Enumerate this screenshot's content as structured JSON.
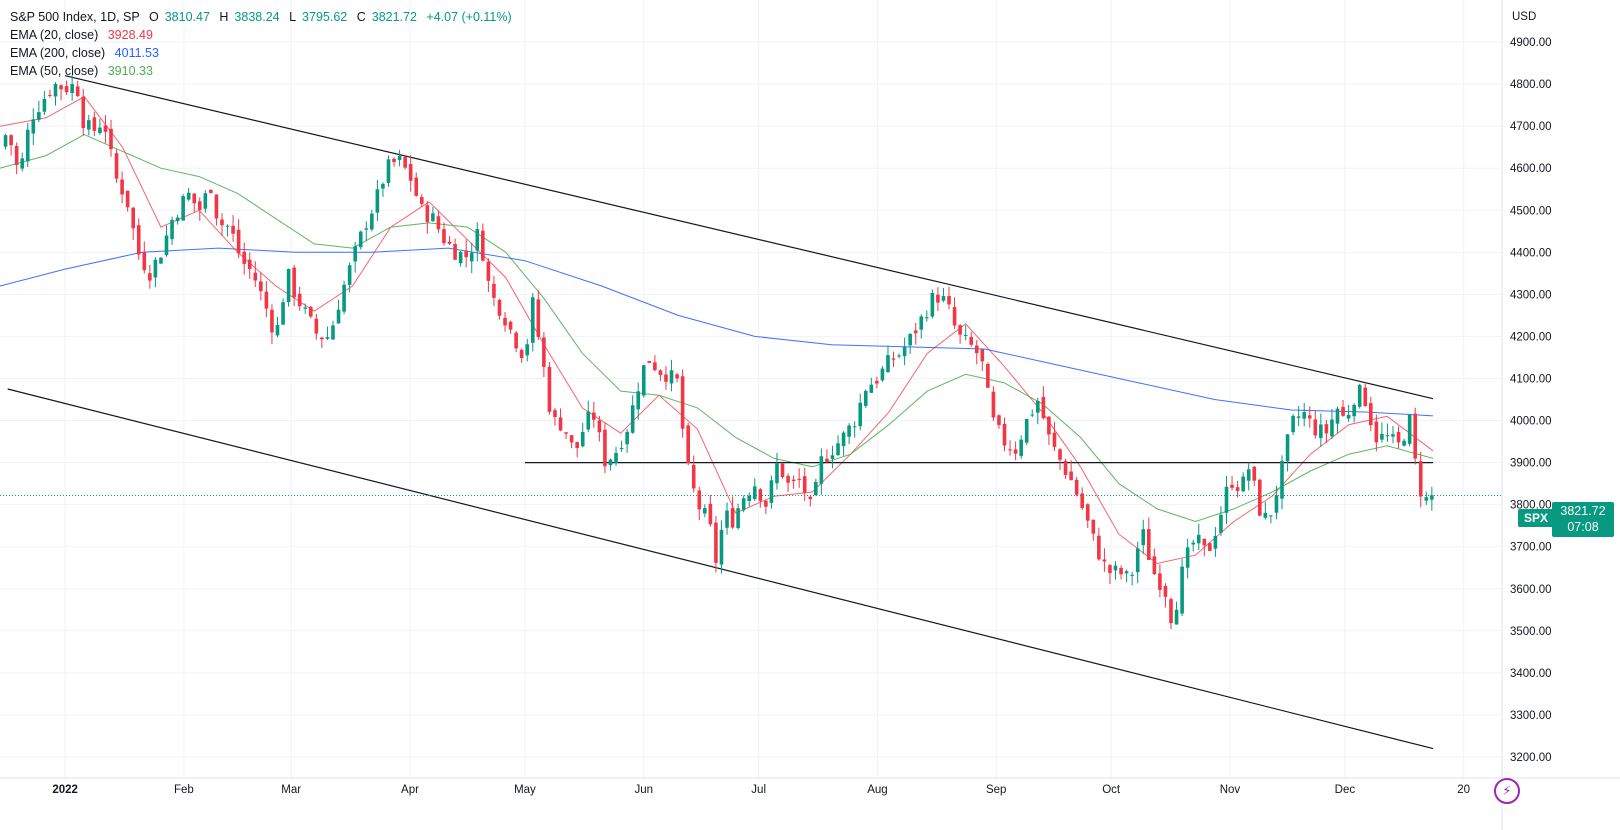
{
  "legend": {
    "symbol": "S&P 500 Index, 1D, SP",
    "ohlc": {
      "o_label": "O",
      "o": "3810.47",
      "h_label": "H",
      "h": "3838.24",
      "l_label": "L",
      "l": "3795.62",
      "c_label": "C",
      "c": "3821.72",
      "change": "+4.07 (+0.11%)"
    },
    "ema20": {
      "label": "EMA (20, close)",
      "value": "3928.49"
    },
    "ema200": {
      "label": "EMA (200, close)",
      "value": "4011.53"
    },
    "ema50": {
      "label": "EMA (50, close)",
      "value": "3910.33"
    }
  },
  "price_badge": {
    "symbol": "SPX",
    "price": "3821.72",
    "countdown": "07:08"
  },
  "colors": {
    "up": "#089981",
    "down": "#f23645",
    "ema20": "#f7525f",
    "ema50": "#4caf50",
    "ema200": "#2962ff"
  },
  "chart_data": {
    "type": "candlestick",
    "title": "S&P 500 Index, 1D, SP",
    "currency": "USD",
    "ylim": [
      3150,
      5000
    ],
    "y_ticks": [
      "4900.00",
      "4800.00",
      "4700.00",
      "4600.00",
      "4500.00",
      "4400.00",
      "4300.00",
      "4200.00",
      "4100.00",
      "4000.00",
      "3900.00",
      "3800.00",
      "3700.00",
      "3600.00",
      "3500.00",
      "3400.00",
      "3300.00",
      "3200.00"
    ],
    "x_ticks": [
      {
        "label": "2022",
        "day": 0,
        "bold": true
      },
      {
        "label": "Feb",
        "day": 31
      },
      {
        "label": "Mar",
        "day": 59
      },
      {
        "label": "Apr",
        "day": 90
      },
      {
        "label": "May",
        "day": 120
      },
      {
        "label": "Jun",
        "day": 151
      },
      {
        "label": "Jul",
        "day": 181
      },
      {
        "label": "Aug",
        "day": 212
      },
      {
        "label": "Sep",
        "day": 243
      },
      {
        "label": "Oct",
        "day": 273
      },
      {
        "label": "Nov",
        "day": 304
      },
      {
        "label": "Dec",
        "day": 334
      },
      {
        "label": "20",
        "day": 365
      }
    ],
    "x_range_days": [
      -17,
      375
    ],
    "price_path": [
      [
        "-17",
        4650
      ],
      [
        "-15",
        4690
      ],
      [
        "-12",
        4580
      ],
      [
        "-9",
        4720
      ],
      [
        "-6",
        4760
      ],
      [
        "-3",
        4800
      ],
      [
        "0",
        4790
      ],
      [
        "3",
        4800
      ],
      [
        "5",
        4700
      ],
      [
        "8",
        4690
      ],
      [
        "10",
        4720
      ],
      [
        "13",
        4580
      ],
      [
        "16",
        4530
      ],
      [
        "19",
        4400
      ],
      [
        "22",
        4350
      ],
      [
        "25",
        4400
      ],
      [
        "28",
        4480
      ],
      [
        "32",
        4540
      ],
      [
        "35",
        4500
      ],
      [
        "38",
        4560
      ],
      [
        "40",
        4470
      ],
      [
        "43",
        4460
      ],
      [
        "46",
        4380
      ],
      [
        "49",
        4350
      ],
      [
        "52",
        4280
      ],
      [
        "55",
        4200
      ],
      [
        "58",
        4350
      ],
      [
        "60",
        4300
      ],
      [
        "63",
        4250
      ],
      [
        "66",
        4200
      ],
      [
        "69",
        4200
      ],
      [
        "72",
        4300
      ],
      [
        "75",
        4380
      ],
      [
        "78",
        4460
      ],
      [
        "81",
        4520
      ],
      [
        "84",
        4600
      ],
      [
        "87",
        4620
      ],
      [
        "90",
        4580
      ],
      [
        "93",
        4500
      ],
      [
        "96",
        4480
      ],
      [
        "99",
        4430
      ],
      [
        "102",
        4400
      ],
      [
        "105",
        4390
      ],
      [
        "108",
        4450
      ],
      [
        "111",
        4300
      ],
      [
        "114",
        4260
      ],
      [
        "117",
        4200
      ],
      [
        "120",
        4150
      ],
      [
        "122",
        4280
      ],
      [
        "125",
        4120
      ],
      [
        "127",
        4000
      ],
      [
        "130",
        3990
      ],
      [
        "133",
        3920
      ],
      [
        "136",
        4000
      ],
      [
        "138",
        4010
      ],
      [
        "141",
        3900
      ],
      [
        "144",
        3930
      ],
      [
        "147",
        3990
      ],
      [
        "150",
        4100
      ],
      [
        "152",
        4150
      ],
      [
        "155",
        4120
      ],
      [
        "157",
        4110
      ],
      [
        "160",
        4090
      ],
      [
        "162",
        3900
      ],
      [
        "165",
        3800
      ],
      [
        "168",
        3760
      ],
      [
        "170",
        3660
      ],
      [
        "172",
        3780
      ],
      [
        "174",
        3760
      ],
      [
        "177",
        3820
      ],
      [
        "180",
        3850
      ],
      [
        "183",
        3800
      ],
      [
        "186",
        3900
      ],
      [
        "189",
        3840
      ],
      [
        "192",
        3860
      ],
      [
        "195",
        3780
      ],
      [
        "197",
        3900
      ],
      [
        "200",
        3930
      ],
      [
        "203",
        3960
      ],
      [
        "206",
        4000
      ],
      [
        "209",
        4080
      ],
      [
        "212",
        4100
      ],
      [
        "215",
        4140
      ],
      [
        "218",
        4160
      ],
      [
        "221",
        4200
      ],
      [
        "224",
        4250
      ],
      [
        "227",
        4300
      ],
      [
        "230",
        4280
      ],
      [
        "233",
        4200
      ],
      [
        "236",
        4180
      ],
      [
        "239",
        4150
      ],
      [
        "242",
        4000
      ],
      [
        "245",
        3950
      ],
      [
        "248",
        3930
      ],
      [
        "251",
        4000
      ],
      [
        "254",
        4050
      ],
      [
        "257",
        3950
      ],
      [
        "260",
        3900
      ],
      [
        "263",
        3850
      ],
      [
        "266",
        3780
      ],
      [
        "269",
        3700
      ],
      [
        "272",
        3640
      ],
      [
        "275",
        3640
      ],
      [
        "278",
        3620
      ],
      [
        "281",
        3740
      ],
      [
        "284",
        3640
      ],
      [
        "287",
        3600
      ],
      [
        "289",
        3520
      ],
      [
        "292",
        3660
      ],
      [
        "295",
        3720
      ],
      [
        "298",
        3680
      ],
      [
        "301",
        3760
      ],
      [
        "304",
        3860
      ],
      [
        "307",
        3840
      ],
      [
        "309",
        3890
      ],
      [
        "312",
        3780
      ],
      [
        "314",
        3760
      ],
      [
        "317",
        3860
      ],
      [
        "320",
        3990
      ],
      [
        "323",
        4020
      ],
      [
        "326",
        3980
      ],
      [
        "329",
        3970
      ],
      [
        "332",
        4030
      ],
      [
        "334",
        4000
      ],
      [
        "337",
        4070
      ],
      [
        "339",
        4060
      ],
      [
        "342",
        3960
      ],
      [
        "345",
        3960
      ],
      [
        "348",
        3940
      ],
      [
        "351",
        4000
      ],
      [
        "353",
        3850
      ],
      [
        "355",
        3810
      ],
      [
        "357",
        3821
      ]
    ],
    "series": [
      {
        "name": "EMA (20, close)",
        "last": 3928.49,
        "values": [
          [
            -17,
            4700
          ],
          [
            -5,
            4720
          ],
          [
            5,
            4770
          ],
          [
            15,
            4650
          ],
          [
            25,
            4460
          ],
          [
            35,
            4500
          ],
          [
            45,
            4400
          ],
          [
            55,
            4320
          ],
          [
            65,
            4260
          ],
          [
            75,
            4320
          ],
          [
            85,
            4460
          ],
          [
            95,
            4520
          ],
          [
            105,
            4430
          ],
          [
            115,
            4340
          ],
          [
            125,
            4180
          ],
          [
            135,
            4030
          ],
          [
            145,
            3970
          ],
          [
            155,
            4060
          ],
          [
            165,
            3980
          ],
          [
            175,
            3780
          ],
          [
            185,
            3820
          ],
          [
            195,
            3830
          ],
          [
            205,
            3920
          ],
          [
            215,
            4020
          ],
          [
            225,
            4160
          ],
          [
            235,
            4230
          ],
          [
            245,
            4130
          ],
          [
            255,
            4020
          ],
          [
            265,
            3890
          ],
          [
            275,
            3730
          ],
          [
            285,
            3660
          ],
          [
            295,
            3680
          ],
          [
            305,
            3760
          ],
          [
            315,
            3820
          ],
          [
            325,
            3920
          ],
          [
            335,
            3990
          ],
          [
            345,
            4010
          ],
          [
            357,
            3928
          ]
        ]
      },
      {
        "name": "EMA (50, close)",
        "last": 3910.33,
        "values": [
          [
            -17,
            4600
          ],
          [
            -5,
            4630
          ],
          [
            5,
            4680
          ],
          [
            15,
            4640
          ],
          [
            25,
            4600
          ],
          [
            35,
            4580
          ],
          [
            45,
            4540
          ],
          [
            55,
            4480
          ],
          [
            65,
            4420
          ],
          [
            75,
            4410
          ],
          [
            85,
            4460
          ],
          [
            95,
            4470
          ],
          [
            105,
            4460
          ],
          [
            115,
            4400
          ],
          [
            125,
            4290
          ],
          [
            135,
            4160
          ],
          [
            145,
            4070
          ],
          [
            155,
            4060
          ],
          [
            165,
            4030
          ],
          [
            175,
            3960
          ],
          [
            185,
            3910
          ],
          [
            195,
            3890
          ],
          [
            205,
            3920
          ],
          [
            215,
            3990
          ],
          [
            225,
            4070
          ],
          [
            235,
            4110
          ],
          [
            245,
            4090
          ],
          [
            255,
            4040
          ],
          [
            265,
            3960
          ],
          [
            275,
            3850
          ],
          [
            285,
            3790
          ],
          [
            295,
            3760
          ],
          [
            305,
            3790
          ],
          [
            315,
            3830
          ],
          [
            325,
            3880
          ],
          [
            335,
            3920
          ],
          [
            345,
            3940
          ],
          [
            357,
            3910
          ]
        ]
      },
      {
        "name": "EMA (200, close)",
        "last": 4011.53,
        "values": [
          [
            -17,
            4320
          ],
          [
            0,
            4360
          ],
          [
            20,
            4400
          ],
          [
            40,
            4410
          ],
          [
            60,
            4400
          ],
          [
            80,
            4400
          ],
          [
            100,
            4410
          ],
          [
            120,
            4380
          ],
          [
            140,
            4320
          ],
          [
            160,
            4250
          ],
          [
            180,
            4200
          ],
          [
            200,
            4180
          ],
          [
            220,
            4175
          ],
          [
            240,
            4170
          ],
          [
            260,
            4130
          ],
          [
            280,
            4090
          ],
          [
            300,
            4050
          ],
          [
            320,
            4025
          ],
          [
            340,
            4020
          ],
          [
            357,
            4011
          ]
        ]
      }
    ],
    "trendlines": [
      {
        "name": "upper channel",
        "points": [
          [
            0,
            4820
          ],
          [
            357,
            4052
          ]
        ]
      },
      {
        "name": "lower channel",
        "points": [
          [
            -15,
            4075
          ],
          [
            357,
            3220
          ]
        ]
      },
      {
        "name": "horizontal support",
        "points": [
          [
            120,
            3900
          ],
          [
            357,
            3900
          ]
        ]
      }
    ],
    "last_close": 3821.72
  }
}
